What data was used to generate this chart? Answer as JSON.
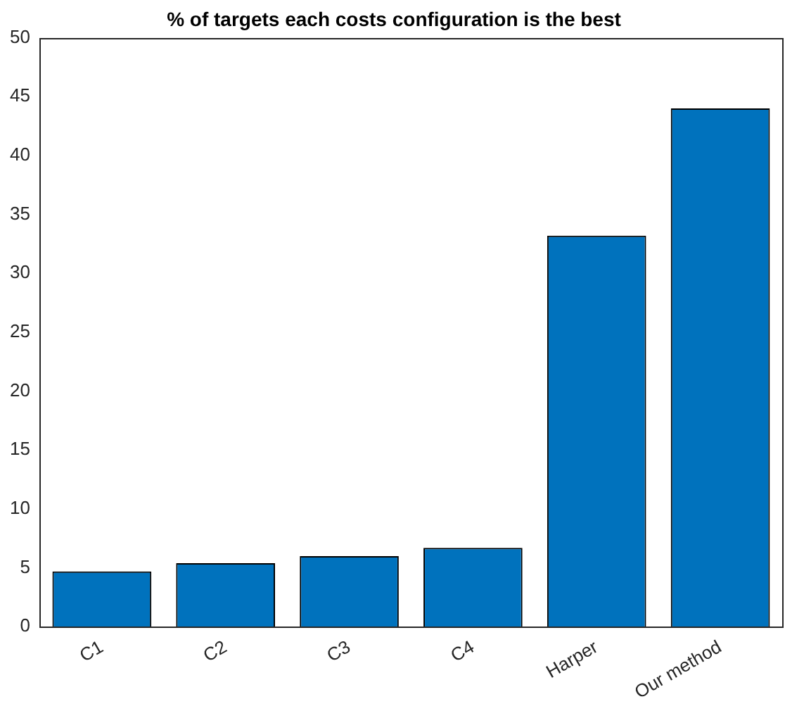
{
  "chart_data": {
    "type": "bar",
    "title": "% of targets each costs configuration is the best",
    "categories": [
      "C1",
      "C2",
      "C3",
      "C4",
      "Harper",
      "Our method"
    ],
    "values": [
      4.7,
      5.4,
      6.0,
      6.7,
      33.2,
      44.0
    ],
    "color": "#0072bd",
    "ylim": [
      0,
      50
    ],
    "yticks": [
      0,
      5,
      10,
      15,
      20,
      25,
      30,
      35,
      40,
      45,
      50
    ],
    "grid": false
  }
}
